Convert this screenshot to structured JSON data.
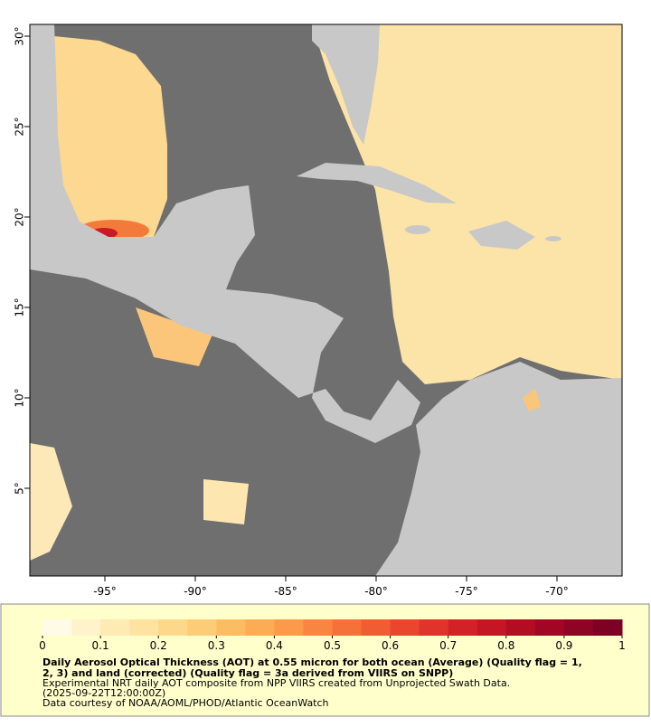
{
  "map": {
    "xlim": [
      -99.15,
      -66.4
    ],
    "ylim": [
      0.15,
      30.65
    ],
    "xticks": [
      {
        "value": -95,
        "label": "-95°"
      },
      {
        "value": -90,
        "label": "-90°"
      },
      {
        "value": -85,
        "label": "-85°"
      },
      {
        "value": -80,
        "label": "-80°"
      },
      {
        "value": -75,
        "label": "-75°"
      },
      {
        "value": -70,
        "label": "-70°"
      }
    ],
    "yticks": [
      {
        "value": 5,
        "label": "5°"
      },
      {
        "value": 10,
        "label": "10°"
      },
      {
        "value": 15,
        "label": "15°"
      },
      {
        "value": 20,
        "label": "20°"
      },
      {
        "value": 25,
        "label": "25°"
      },
      {
        "value": 30,
        "label": "30°"
      }
    ]
  },
  "colorbar": {
    "lim": [
      0,
      1
    ],
    "ticks": [
      0,
      0.1,
      0.2,
      0.3,
      0.4,
      0.5,
      0.6,
      0.7,
      0.8,
      0.9,
      1
    ],
    "colors": [
      "#fffbe6",
      "#fff3cc",
      "#feebb4",
      "#fee2a0",
      "#fdd88a",
      "#fdcc76",
      "#fcbd62",
      "#fcac52",
      "#fb9a48",
      "#f98640",
      "#f6713a",
      "#f15c33",
      "#ea462e",
      "#e0332a",
      "#d32227",
      "#c41624",
      "#b30d24",
      "#a10624",
      "#8f0325",
      "#7d0125"
    ]
  },
  "caption": {
    "title_lines": [
      "Daily Aerosol Optical Thickness (AOT) at 0.55 micron for both ocean (Average) (Quality flag = 1,",
      "2, 3) and land (corrected) (Quality flag = 3a derived from VIIRS on SNPP)"
    ],
    "lines": [
      "Experimental NRT daily AOT composite from NPP VIIRS created from Unprojected Swath Data.",
      "(2025-09-22T12:00:00Z)",
      "Data courtesy of NOAA/AOML/PHOD/Atlantic OceanWatch"
    ]
  }
}
